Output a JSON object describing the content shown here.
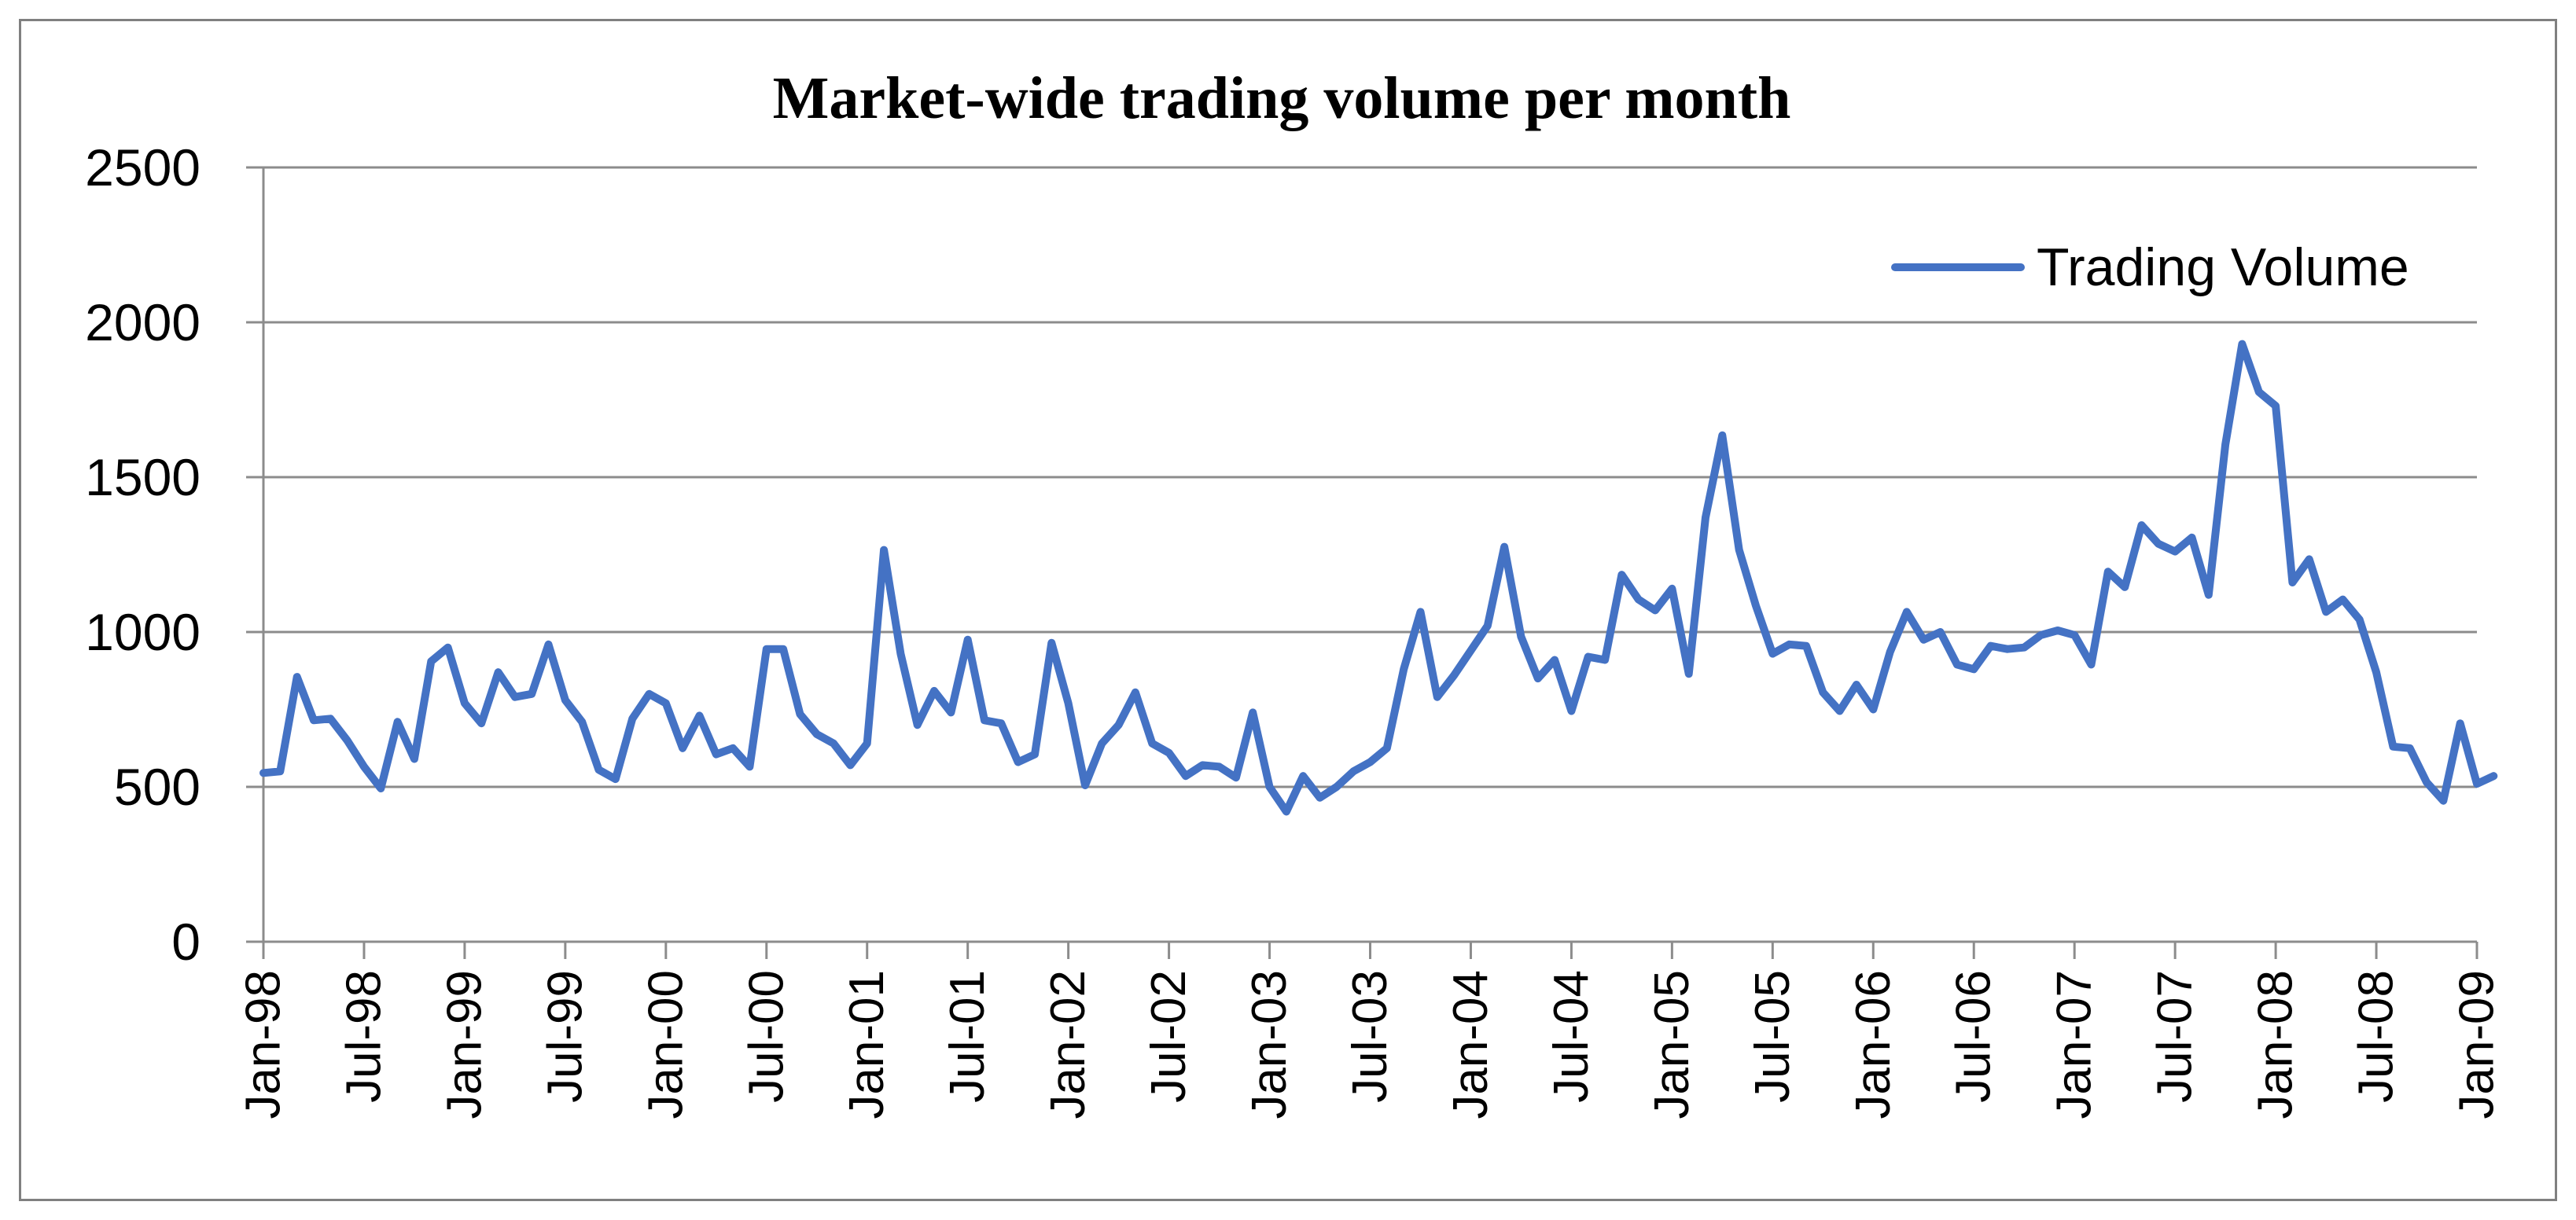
{
  "chart_data": {
    "type": "line",
    "title": "Market-wide trading volume per month",
    "xlabel": "",
    "ylabel": "",
    "ylim": [
      0,
      2500
    ],
    "yticks": [
      "0",
      "500",
      "1000",
      "1500",
      "2000",
      "2500"
    ],
    "grid": true,
    "legend_position": "top-right",
    "x_tick_labels": [
      "Jan-98",
      "Jul-98",
      "Jan-99",
      "Jul-99",
      "Jan-00",
      "Jul-00",
      "Jan-01",
      "Jul-01",
      "Jan-02",
      "Jul-02",
      "Jan-03",
      "Jul-03",
      "Jan-04",
      "Jul-04",
      "Jan-05",
      "Jul-05",
      "Jan-06",
      "Jul-06",
      "Jan-07",
      "Jul-07",
      "Jan-08",
      "Jul-08",
      "Jan-09"
    ],
    "series": [
      {
        "name": "Trading Volume",
        "color": "#4472c4",
        "start": "Jan-98",
        "frequency": "monthly",
        "values": [
          545,
          550,
          855,
          715,
          720,
          650,
          565,
          495,
          710,
          590,
          905,
          950,
          770,
          705,
          870,
          790,
          800,
          960,
          780,
          710,
          555,
          525,
          720,
          800,
          770,
          625,
          730,
          605,
          625,
          565,
          945,
          945,
          735,
          670,
          640,
          570,
          640,
          1265,
          930,
          700,
          810,
          740,
          975,
          715,
          705,
          580,
          605,
          965,
          770,
          505,
          640,
          700,
          805,
          640,
          610,
          535,
          570,
          565,
          530,
          740,
          500,
          420,
          535,
          465,
          500,
          550,
          580,
          625,
          880,
          1065,
          790,
          860,
          940,
          1020,
          1275,
          985,
          850,
          910,
          745,
          920,
          910,
          1185,
          1105,
          1070,
          1140,
          865,
          1370,
          1635,
          1265,
          1085,
          930,
          960,
          955,
          805,
          745,
          830,
          750,
          935,
          1065,
          975,
          1000,
          895,
          880,
          955,
          945,
          950,
          990,
          1005,
          990,
          895,
          1195,
          1145,
          1345,
          1285,
          1260,
          1305,
          1120,
          1605,
          1930,
          1775,
          1730,
          1160,
          1235,
          1065,
          1105,
          1040,
          870,
          630,
          625,
          515,
          455,
          705,
          510,
          535
        ]
      }
    ]
  }
}
